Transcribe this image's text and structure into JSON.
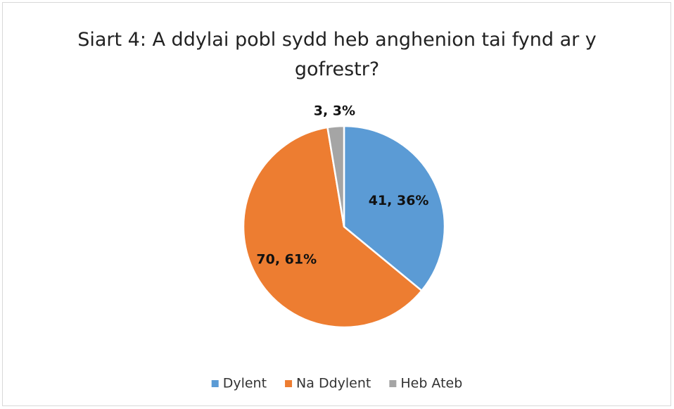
{
  "chart_data": {
    "type": "pie",
    "title": "Siart 4: A ddylai pobl sydd heb anghenion tai fynd ar y gofrestr?",
    "categories": [
      "Dylent",
      "Na Ddylent",
      "Heb Ateb"
    ],
    "values": [
      41,
      70,
      3
    ],
    "value_labels": [
      "41, 36%",
      "70, 61%",
      "3, 3%"
    ],
    "colors": [
      "#5b9bd5",
      "#ed7d31",
      "#a5a5a5"
    ],
    "legend": "bottom"
  }
}
